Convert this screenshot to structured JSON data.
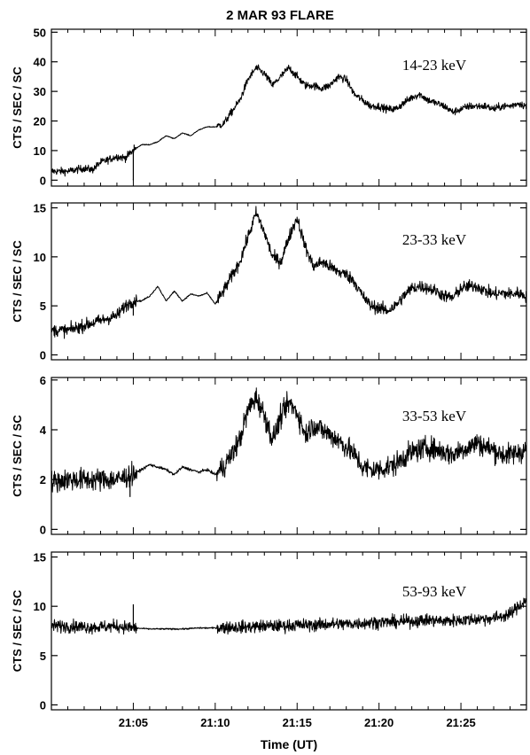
{
  "chart_data": {
    "type": "line",
    "title": "2 MAR 93 FLARE",
    "xlabel": "Time (UT)",
    "x_unit": "minutes",
    "xlim": [
      "21:00",
      "21:29"
    ],
    "x_ticks": [
      "21:05",
      "21:10",
      "21:15",
      "21:20",
      "21:25"
    ],
    "x_ticks_values": [
      5,
      10,
      15,
      20,
      25
    ],
    "panels": [
      {
        "band": "14-23 keV",
        "ylabel": "CTS / SEC / SC",
        "ylim": [
          -2,
          51
        ],
        "yticks": [
          0,
          10,
          20,
          30,
          40,
          50
        ],
        "noise": 0.9,
        "spikes": [
          [
            5.0,
            0.0
          ],
          [
            5.05,
            12.0
          ]
        ],
        "series": [
          {
            "name": "14-23 keV",
            "x": [
              0,
              1,
              2,
              2.5,
              3,
              4,
              4.5,
              5,
              5.5,
              6,
              6.5,
              7,
              7.5,
              8,
              8.5,
              9,
              9.5,
              10,
              10.5,
              11,
              11.5,
              12,
              12.5,
              13,
              13.5,
              14,
              14.5,
              15,
              15.5,
              16,
              16.5,
              17,
              17.5,
              18,
              18.5,
              19,
              19.5,
              20,
              20.5,
              21,
              21.5,
              22,
              22.5,
              23,
              23.5,
              24,
              24.5,
              25,
              25.5,
              26,
              26.5,
              27,
              27.5,
              28,
              28.5,
              29
            ],
            "values": [
              3,
              3,
              4,
              3.5,
              6,
              8,
              7.5,
              10,
              12,
              12,
              13,
              15,
              14,
              16,
              15,
              17,
              18,
              18,
              19,
              23,
              27,
              34,
              38,
              36,
              32,
              35,
              38,
              35,
              32,
              32,
              31,
              32,
              35,
              34,
              29,
              27,
              25,
              25,
              24,
              24,
              26,
              28,
              29,
              27,
              26,
              25,
              23,
              24,
              25,
              25,
              25,
              24,
              25,
              25,
              26,
              25
            ]
          }
        ]
      },
      {
        "band": "23-33 keV",
        "ylabel": "CTS / SEC / SC",
        "ylim": [
          -0.5,
          15.5
        ],
        "yticks": [
          0,
          5,
          10,
          15
        ],
        "noise": 0.45,
        "spikes": [
          [
            5.0,
            4.0
          ],
          [
            5.05,
            5.5
          ]
        ],
        "series": [
          {
            "name": "23-33 keV",
            "x": [
              0,
              1,
              2,
              3,
              4,
              4.5,
              5,
              5.5,
              6,
              6.5,
              7,
              7.5,
              8,
              8.5,
              9,
              9.5,
              10,
              10.5,
              11,
              11.5,
              12,
              12.5,
              13,
              13.5,
              14,
              14.5,
              15,
              15.5,
              16,
              16.5,
              17,
              17.5,
              18,
              18.5,
              19,
              19.5,
              20,
              20.5,
              21,
              21.5,
              22,
              22.5,
              23,
              23.5,
              24,
              24.5,
              25,
              25.5,
              26,
              26.5,
              27,
              27.5,
              28,
              28.5,
              29
            ],
            "values": [
              2.5,
              2.5,
              3,
              3.5,
              4,
              5,
              5.5,
              5.5,
              6,
              7,
              5.5,
              6.5,
              5.5,
              6.2,
              6,
              6.3,
              5.2,
              6.5,
              8,
              9.5,
              12,
              14.5,
              12.5,
              10,
              9.5,
              12,
              14,
              11,
              9,
              9.5,
              9,
              8.5,
              8.2,
              7.5,
              6,
              5,
              4.8,
              4.5,
              5,
              6,
              6.8,
              7,
              6.8,
              6.5,
              6,
              5.8,
              6.8,
              7,
              7,
              6.5,
              6.2,
              6.3,
              6.2,
              6.3,
              6
            ]
          }
        ]
      },
      {
        "band": "33-53 keV",
        "ylabel": "CTS / SEC / SC",
        "ylim": [
          -0.2,
          6.1
        ],
        "yticks": [
          0,
          2,
          4,
          6
        ],
        "noise": 0.32,
        "spikes": [
          [
            4.8,
            1.3
          ]
        ],
        "series": [
          {
            "name": "33-53 keV",
            "x": [
              0,
              1,
              2,
              3,
              4,
              5,
              5.5,
              6,
              6.5,
              7,
              7.5,
              8,
              8.5,
              9,
              9.5,
              10,
              10.5,
              11,
              11.5,
              12,
              12.5,
              13,
              13.5,
              14,
              14.5,
              15,
              15.5,
              16,
              16.5,
              17,
              17.5,
              18,
              18.5,
              19,
              19.5,
              20,
              20.5,
              21,
              21.5,
              22,
              22.5,
              23,
              23.5,
              24,
              24.5,
              25,
              25.5,
              26,
              26.5,
              27,
              27.5,
              28,
              28.5,
              29
            ],
            "values": [
              1.9,
              2.0,
              2.0,
              2.0,
              2.0,
              2.2,
              2.4,
              2.6,
              2.5,
              2.4,
              2.2,
              2.5,
              2.4,
              2.3,
              2.4,
              2.2,
              2.5,
              3.0,
              3.6,
              4.8,
              5.3,
              4.6,
              3.6,
              4.5,
              5.1,
              4.7,
              3.8,
              4.2,
              4.0,
              3.8,
              3.6,
              3.3,
              3.0,
              2.5,
              2.4,
              2.4,
              2.5,
              2.6,
              2.9,
              3.1,
              3.2,
              3.3,
              3.2,
              3.1,
              3.0,
              3.2,
              3.3,
              3.5,
              3.3,
              3.2,
              3.0,
              3.0,
              3.1,
              3.2
            ]
          }
        ]
      },
      {
        "band": "53-93 keV",
        "ylabel": "CTS / SEC / SC",
        "ylim": [
          -0.5,
          15.5
        ],
        "yticks": [
          0,
          5,
          10,
          15
        ],
        "noise": 0.45,
        "spikes": [
          [
            5.0,
            10.2
          ]
        ],
        "series": [
          {
            "name": "53-93 keV",
            "x": [
              0,
              1,
              2,
              3,
              4,
              5,
              6,
              7,
              8,
              9,
              10,
              11,
              12,
              13,
              14,
              15,
              16,
              17,
              18,
              19,
              20,
              21,
              22,
              23,
              24,
              25,
              26,
              27,
              27.5,
              28,
              28.5,
              29
            ],
            "values": [
              8.0,
              8.0,
              7.9,
              7.9,
              8.0,
              7.8,
              7.7,
              7.7,
              7.7,
              7.8,
              7.8,
              7.9,
              7.9,
              8.0,
              8.0,
              8.1,
              8.1,
              8.2,
              8.2,
              8.3,
              8.4,
              8.4,
              8.5,
              8.6,
              8.5,
              8.6,
              8.7,
              8.8,
              9.0,
              9.2,
              10.0,
              10.6
            ]
          }
        ]
      }
    ]
  }
}
